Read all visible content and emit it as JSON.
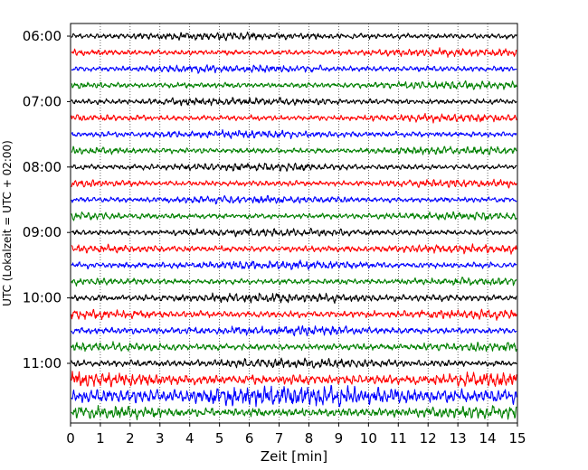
{
  "chart_data": {
    "type": "line",
    "title": "",
    "xlabel": "Zeit  [min]",
    "ylabel": "UTC (Lokalzeit = UTC + 02:00)",
    "xlim": [
      0,
      15
    ],
    "x_ticks": [
      "0",
      "1",
      "2",
      "3",
      "4",
      "5",
      "6",
      "7",
      "8",
      "9",
      "10",
      "11",
      "12",
      "13",
      "14",
      "15"
    ],
    "y_ticks": [
      "06:00",
      "07:00",
      "08:00",
      "09:00",
      "10:00",
      "11:00"
    ],
    "grid": "vertical dotted lines at each minute",
    "trace_interval_min": 15,
    "trace_colors_cycle": [
      "#000000",
      "#ff0000",
      "#0000ff",
      "#008000"
    ],
    "series": [
      {
        "start": "06:00",
        "color": "#000000",
        "amplitude": 2.5
      },
      {
        "start": "06:15",
        "color": "#ff0000",
        "amplitude": 2.5
      },
      {
        "start": "06:30",
        "color": "#0000ff",
        "amplitude": 2.5
      },
      {
        "start": "06:45",
        "color": "#008000",
        "amplitude": 2.5
      },
      {
        "start": "07:00",
        "color": "#000000",
        "amplitude": 2.5
      },
      {
        "start": "07:15",
        "color": "#ff0000",
        "amplitude": 2.5
      },
      {
        "start": "07:30",
        "color": "#0000ff",
        "amplitude": 2.5
      },
      {
        "start": "07:45",
        "color": "#008000",
        "amplitude": 2.5
      },
      {
        "start": "08:00",
        "color": "#000000",
        "amplitude": 2.5
      },
      {
        "start": "08:15",
        "color": "#ff0000",
        "amplitude": 2.5
      },
      {
        "start": "08:30",
        "color": "#0000ff",
        "amplitude": 2.5
      },
      {
        "start": "08:45",
        "color": "#008000",
        "amplitude": 2.5
      },
      {
        "start": "09:00",
        "color": "#000000",
        "amplitude": 2.5
      },
      {
        "start": "09:15",
        "color": "#ff0000",
        "amplitude": 2.8
      },
      {
        "start": "09:30",
        "color": "#0000ff",
        "amplitude": 2.8
      },
      {
        "start": "09:45",
        "color": "#008000",
        "amplitude": 2.5
      },
      {
        "start": "10:00",
        "color": "#000000",
        "amplitude": 3.0
      },
      {
        "start": "10:15",
        "color": "#ff0000",
        "amplitude": 3.0
      },
      {
        "start": "10:30",
        "color": "#0000ff",
        "amplitude": 3.0
      },
      {
        "start": "10:45",
        "color": "#008000",
        "amplitude": 3.0
      },
      {
        "start": "11:00",
        "color": "#000000",
        "amplitude": 3.0
      },
      {
        "start": "11:15",
        "color": "#ff0000",
        "amplitude": 4.5
      },
      {
        "start": "11:30",
        "color": "#0000ff",
        "amplitude": 6.5
      },
      {
        "start": "11:45",
        "color": "#008000",
        "amplitude": 4.0
      }
    ]
  }
}
